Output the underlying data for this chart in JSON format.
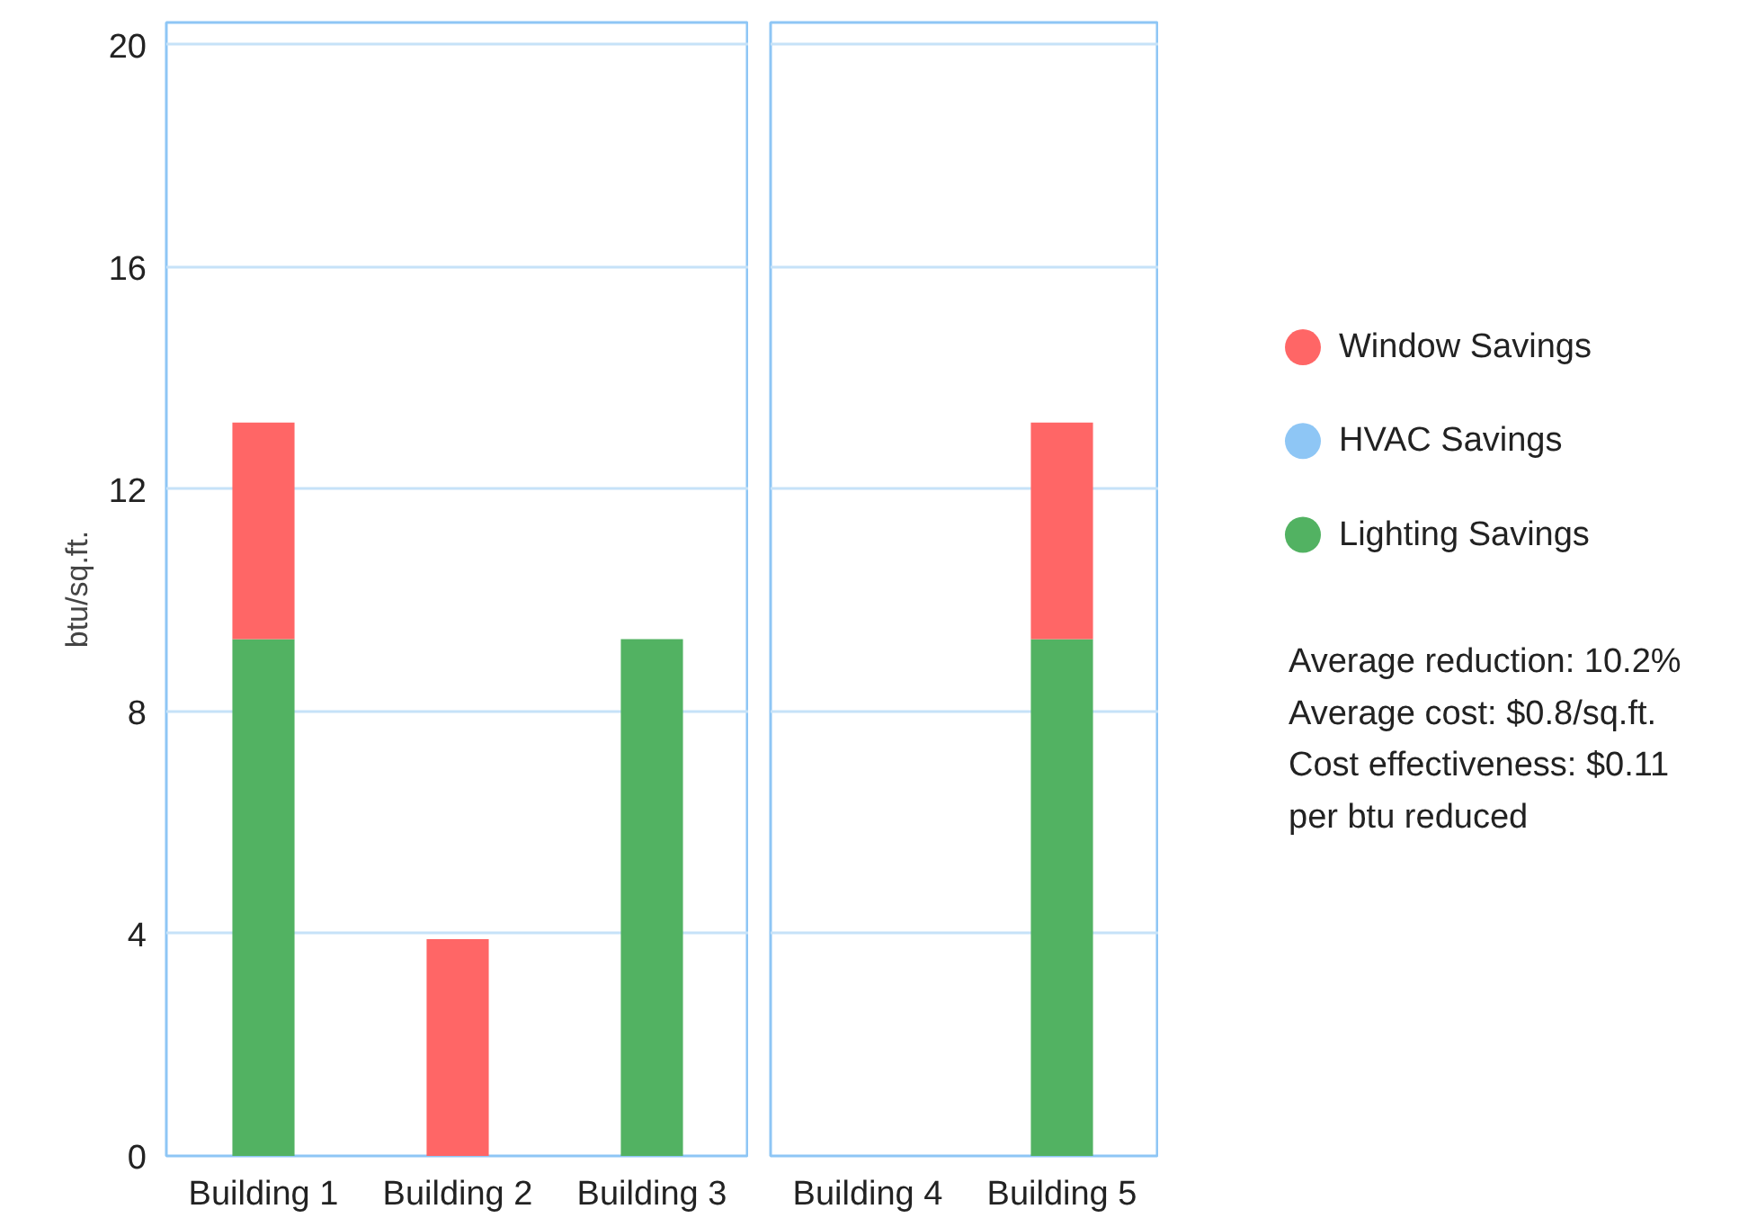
{
  "chart_data": [
    {
      "type": "bar",
      "stacked": true,
      "ylabel": "btu/sq.ft.",
      "categories": [
        "Building 1",
        "Building 2",
        "Building 3"
      ],
      "ylim": [
        0,
        20.4
      ],
      "yticks": [
        0,
        4,
        8,
        12,
        16,
        20
      ],
      "grid": "y",
      "legend": "right",
      "annotations": [
        "Average reduction: 10.2%",
        "Average cost: $0.8/sq.ft.",
        "Cost effectiveness: $0.11",
        "per btu reduced"
      ],
      "series": [
        {
          "name": "Lighting Savings",
          "color": "#52b262",
          "values": [
            9.3,
            0,
            9.3
          ]
        },
        {
          "name": "HVAC Savings",
          "color": "#8ec6f5",
          "values": [
            0,
            0,
            0
          ]
        },
        {
          "name": "Window Savings",
          "color": "#ff6666",
          "values": [
            3.9,
            3.9,
            0
          ]
        }
      ]
    },
    {
      "type": "bar",
      "stacked": true,
      "categories": [
        "Building 4",
        "Building 5"
      ],
      "ylim": [
        0,
        20.4
      ],
      "yticks": [
        0,
        4,
        8,
        12,
        16,
        20
      ],
      "grid": "y",
      "tick_labels": "x",
      "series": [
        {
          "color": "#52b262",
          "values": [
            0,
            9.3
          ]
        },
        {
          "color": "#8ec6f5",
          "values": [
            0,
            0
          ]
        },
        {
          "color": "#ff6666",
          "values": [
            0,
            3.9
          ]
        }
      ]
    }
  ]
}
